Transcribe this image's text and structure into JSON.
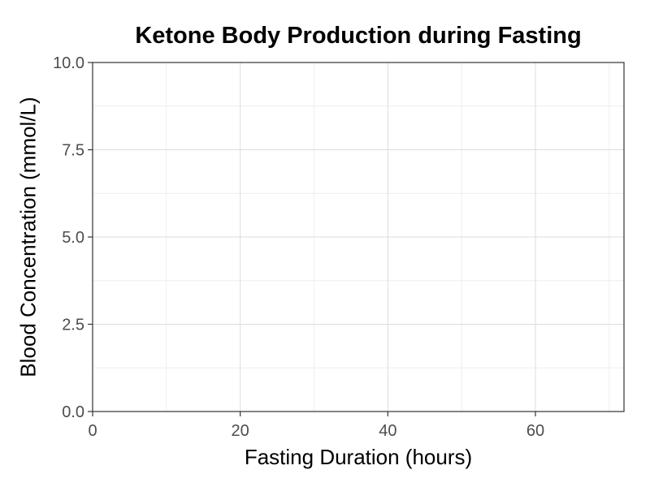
{
  "chart_data": {
    "type": "line",
    "title": "Ketone Body Production during Fasting",
    "xlabel": "Fasting Duration (hours)",
    "ylabel": "Blood Concentration (mmol/L)",
    "xlim": [
      0,
      72
    ],
    "ylim": [
      0,
      10
    ],
    "x_ticks": [
      "0",
      "20",
      "40",
      "60"
    ],
    "y_ticks": [
      "0.0",
      "2.5",
      "5.0",
      "7.5",
      "10.0"
    ],
    "series": [],
    "grid": true,
    "legend": "none"
  },
  "colors": {
    "grid_major": "#dcdcdc",
    "grid_minor": "#eeeeee",
    "panel_border": "#333333",
    "tick_text": "#4d4d4d"
  }
}
